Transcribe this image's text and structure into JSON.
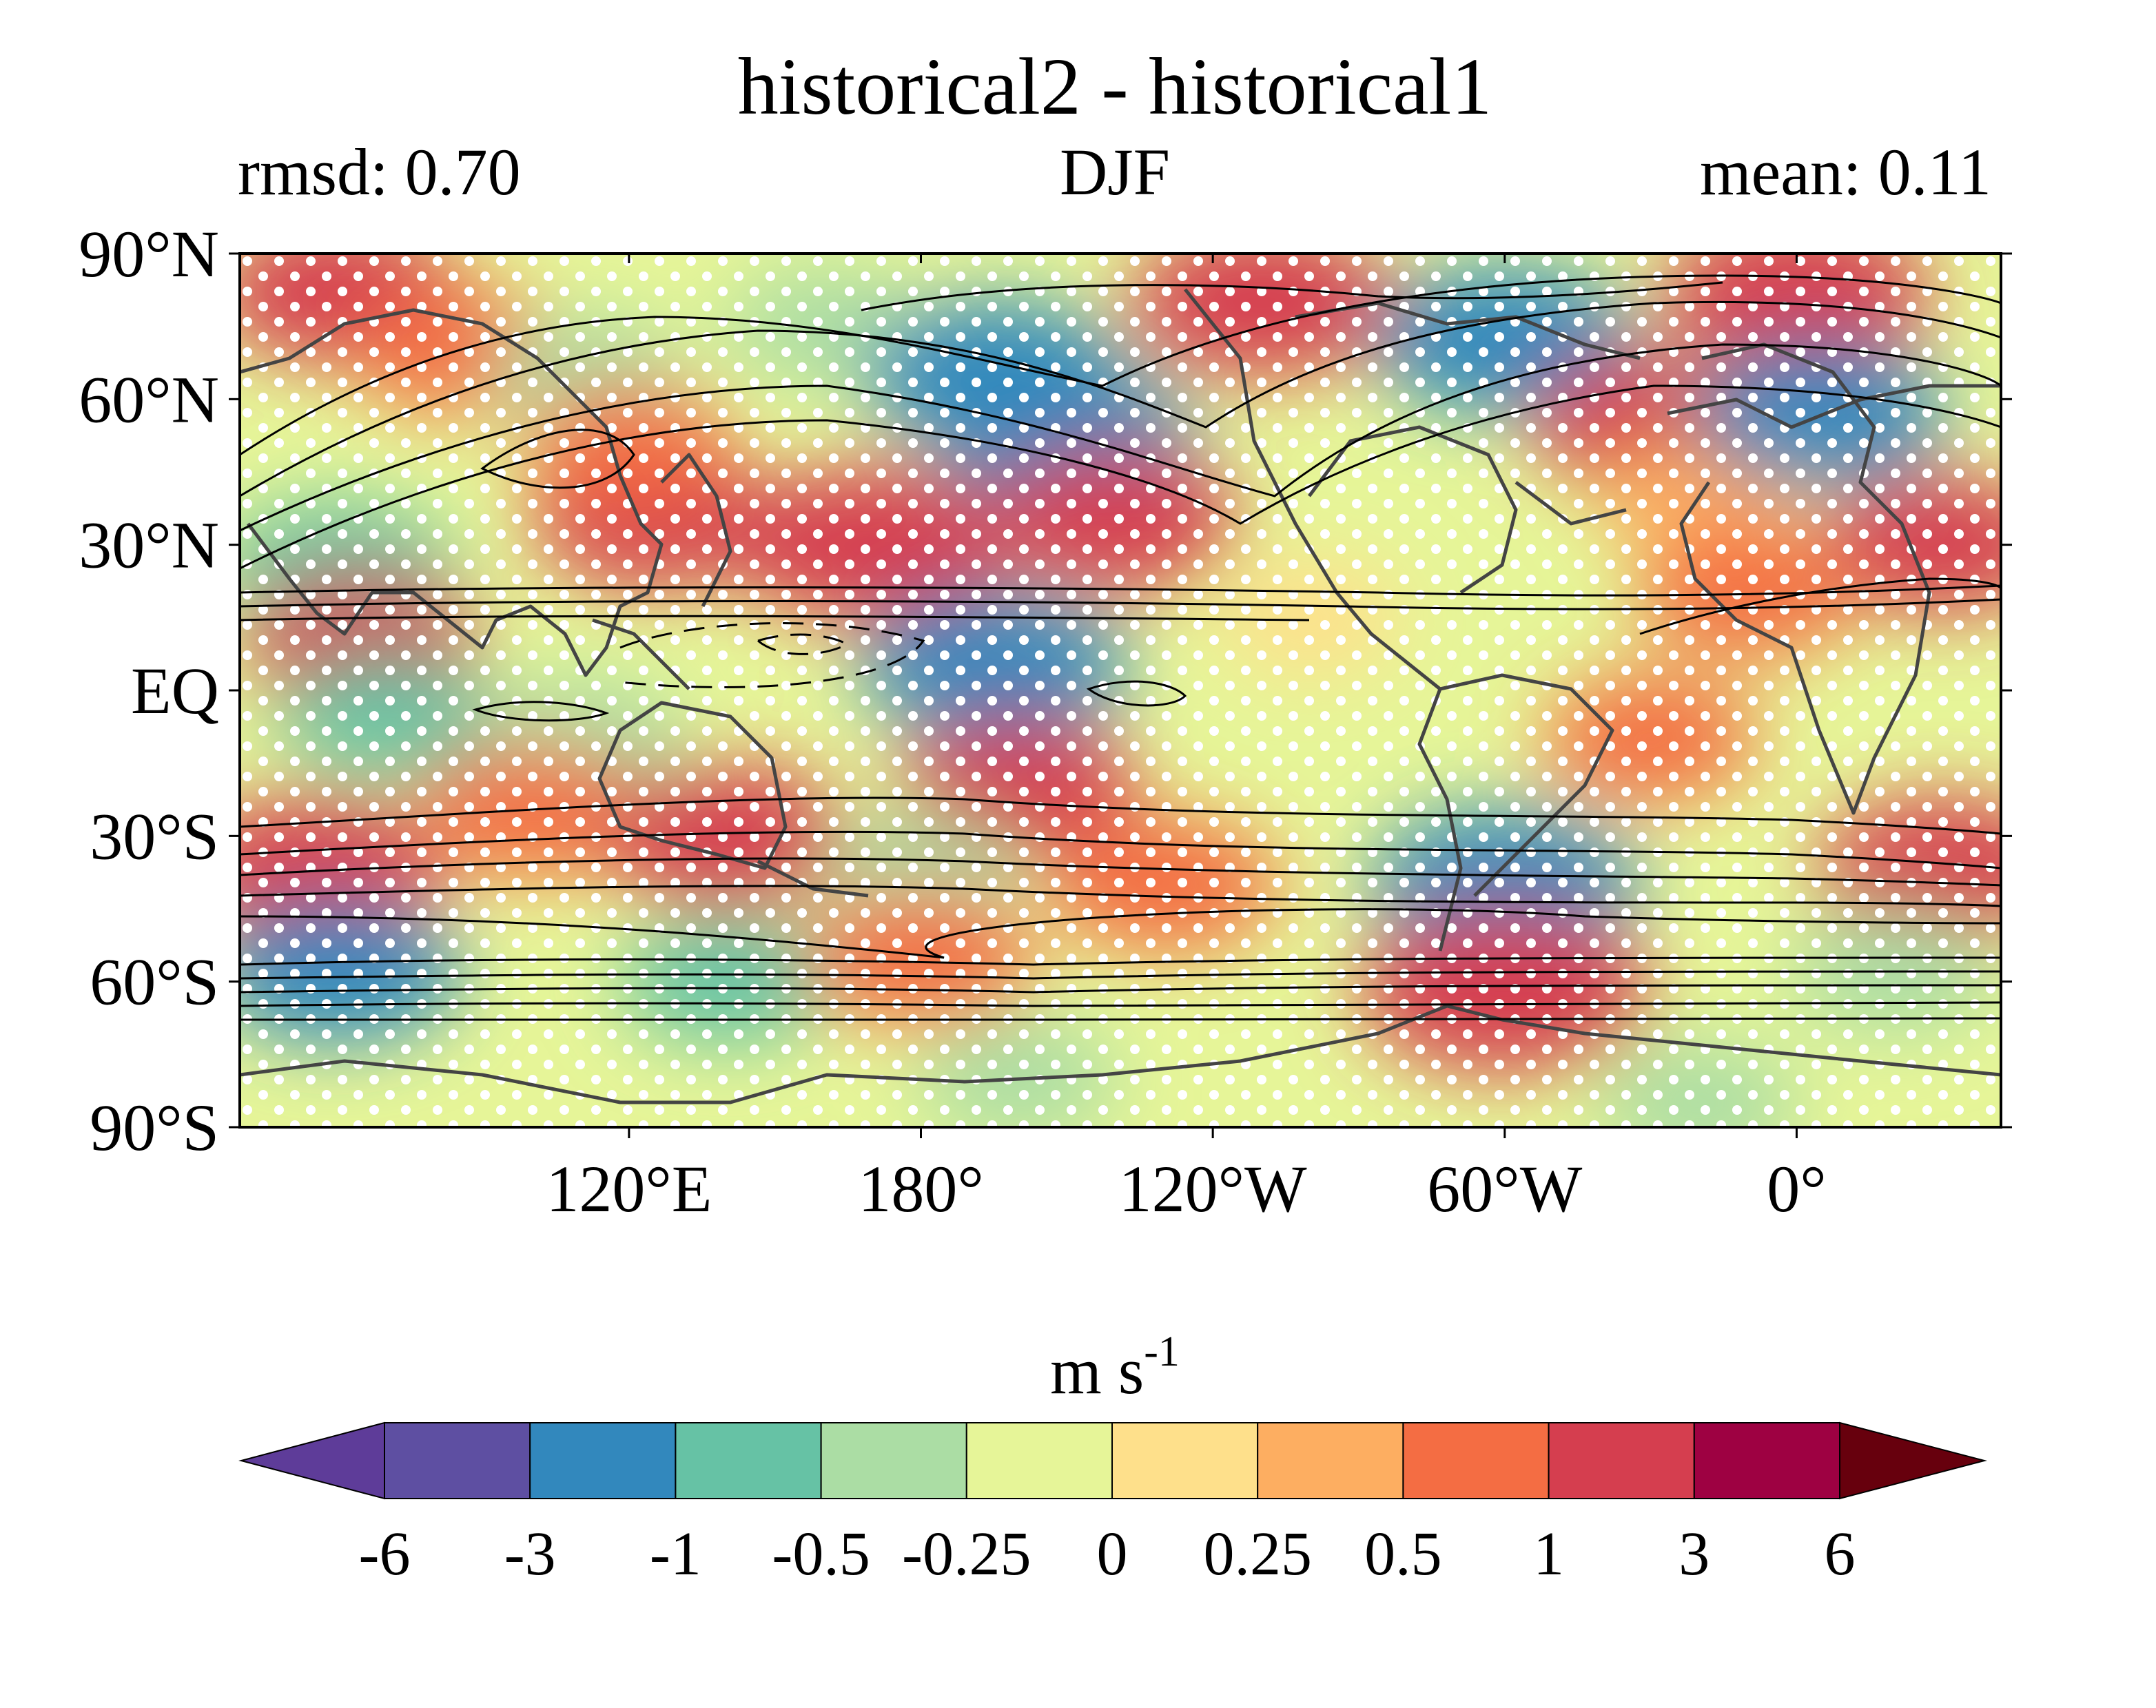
{
  "chart_data": {
    "type": "heatmap",
    "title": "historical2 - historical1",
    "subtitle_left": "rmsd: 0.70",
    "subtitle_center": "DJF",
    "subtitle_right": "mean: 0.11",
    "x_ticks": [
      {
        "lon": 120,
        "label": "120°E"
      },
      {
        "lon": 180,
        "label": "180°"
      },
      {
        "lon": 240,
        "label": "120°W"
      },
      {
        "lon": 300,
        "label": "60°W"
      },
      {
        "lon": 360,
        "label": "0°"
      }
    ],
    "y_ticks": [
      {
        "lat": 90,
        "label": "90°N"
      },
      {
        "lat": 60,
        "label": "60°N"
      },
      {
        "lat": 30,
        "label": "30°N"
      },
      {
        "lat": 0,
        "label": "EQ"
      },
      {
        "lat": -30,
        "label": "30°S"
      },
      {
        "lat": -60,
        "label": "60°S"
      },
      {
        "lat": -90,
        "label": "90°S"
      }
    ],
    "xlim": [
      40,
      402
    ],
    "ylim": [
      -90,
      90
    ],
    "colorbar": {
      "label": "m s",
      "label_superscript": "-1",
      "extend": "both",
      "ticks": [
        "-6",
        "-3",
        "-1",
        "-0.5",
        "-0.25",
        "0",
        "0.25",
        "0.5",
        "1",
        "3",
        "6"
      ],
      "colors": [
        "#5e3c99",
        "#5e4fa2",
        "#3288bd",
        "#66c2a5",
        "#abdda4",
        "#e6f598",
        "#fee08b",
        "#fdae61",
        "#f46d43",
        "#d53e4f",
        "#9e0142",
        "#67000d"
      ]
    },
    "anomaly_regions": [
      {
        "lon": 60,
        "lat": 82,
        "value": 1.2
      },
      {
        "lon": 85,
        "lat": 70,
        "value": 0.6
      },
      {
        "lon": 112,
        "lat": 65,
        "value": -0.3
      },
      {
        "lon": 125,
        "lat": 35,
        "value": 1.1
      },
      {
        "lon": 160,
        "lat": 75,
        "value": -0.3
      },
      {
        "lon": 170,
        "lat": 30,
        "value": 1.8
      },
      {
        "lon": 195,
        "lat": 65,
        "value": -1.5
      },
      {
        "lon": 210,
        "lat": 52,
        "value": -1.4
      },
      {
        "lon": 220,
        "lat": 35,
        "value": 1.2
      },
      {
        "lon": 250,
        "lat": 80,
        "value": 1.5
      },
      {
        "lon": 300,
        "lat": 72,
        "value": -1.5
      },
      {
        "lon": 330,
        "lat": 55,
        "value": 1.0
      },
      {
        "lon": 340,
        "lat": 40,
        "value": 0.4
      },
      {
        "lon": 360,
        "lat": 82,
        "value": 1.6
      },
      {
        "lon": 365,
        "lat": 57,
        "value": -1.3
      },
      {
        "lon": 390,
        "lat": 30,
        "value": 1.0
      },
      {
        "lon": 350,
        "lat": 20,
        "value": 0.7
      },
      {
        "lon": 60,
        "lat": 25,
        "value": -1.0
      },
      {
        "lon": 65,
        "lat": 10,
        "value": 1.0
      },
      {
        "lon": 70,
        "lat": -5,
        "value": -0.6
      },
      {
        "lon": 110,
        "lat": -10,
        "value": -0.5
      },
      {
        "lon": 195,
        "lat": 5,
        "value": -1.6
      },
      {
        "lon": 100,
        "lat": -25,
        "value": 0.8
      },
      {
        "lon": 140,
        "lat": -30,
        "value": 1.2
      },
      {
        "lon": 200,
        "lat": -20,
        "value": 1.0
      },
      {
        "lon": 180,
        "lat": -38,
        "value": -0.4
      },
      {
        "lon": 230,
        "lat": -40,
        "value": 0.9
      },
      {
        "lon": 300,
        "lat": -40,
        "value": -1.6
      },
      {
        "lon": 330,
        "lat": -10,
        "value": 0.6
      },
      {
        "lon": 55,
        "lat": -37,
        "value": 1.4
      },
      {
        "lon": 390,
        "lat": -37,
        "value": 1.3
      },
      {
        "lon": 60,
        "lat": -58,
        "value": -1.2
      },
      {
        "lon": 140,
        "lat": -60,
        "value": -0.6
      },
      {
        "lon": 180,
        "lat": -55,
        "value": 0.9
      },
      {
        "lon": 300,
        "lat": -62,
        "value": 2.0
      },
      {
        "lon": 380,
        "lat": -58,
        "value": -0.5
      },
      {
        "lon": 200,
        "lat": -80,
        "value": -0.4
      },
      {
        "lon": 340,
        "lat": -85,
        "value": -0.4
      },
      {
        "lon": 260,
        "lat": 15,
        "value": 0.1
      },
      {
        "lon": 120,
        "lat": 50,
        "value": 0.5
      }
    ],
    "significance": "stippled",
    "background_contours": "solid positive, dashed negative"
  }
}
